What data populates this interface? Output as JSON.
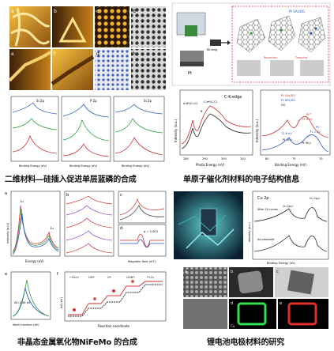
{
  "captions": {
    "q1": "二维材料—硅插入促进单层蓝磷的合成",
    "q2": "单原子催化剂材料的电子结构信息",
    "q3": "非晶态金属氧化物NiFeMo 的合成",
    "q4": "锂电池电极材料的研究"
  },
  "q1": {
    "panel_letters": [
      "a",
      "b",
      "c",
      "d",
      "e",
      "f",
      "g",
      "h"
    ],
    "xps_xlabel": "Binding Energy (eV)",
    "xps_titles": [
      "Si 2p",
      "P 2p",
      "Si 2p"
    ]
  },
  "q2": {
    "bottom_left": {
      "title": "C-K-edge",
      "xlabel": "Photo Energy (eV)",
      "ylabel": "Intensity (a.u.)",
      "peak_a": "A:π*(C=C)",
      "peak_b": "B",
      "peak_c": "C:σ*(C-C)",
      "ticks": [
        "280",
        "290",
        "300",
        "310"
      ]
    },
    "bottom_right": {
      "xlabel": "Binding Energy (eV)",
      "ylabel": "Intensity (a.u.)",
      "legend": [
        "Pt SAs/DG",
        "Pt NPs/DG",
        "DG"
      ],
      "labels": [
        "Pt²⁺",
        "73.6 eV",
        "Pt⁰",
        "71.2 eV",
        "Pt 4f₇/₂",
        "Pt 4f₅/₂",
        "72.6 eV"
      ],
      "ticks": [
        "80",
        "75",
        "70"
      ]
    },
    "schematic": {
      "label_pt": "Pt",
      "label_binding": "Binding",
      "label_reduction": "Reduction",
      "label_trapping": "Trapping",
      "label_sa": "Pt SAs/DG"
    }
  },
  "q3": {
    "panel_letters": [
      "a",
      "b",
      "c",
      "d",
      "e",
      "f"
    ],
    "a": {
      "xlabel": "Energy (eV)",
      "ylabel": "Intensity (a.u.)",
      "peaks": [
        "L₃",
        "L₂"
      ]
    },
    "e": {
      "xlabel": "Work function (eV)",
      "annotation": "W=2.44 eV"
    },
    "f": {
      "xlabel": "Reaction coordinate",
      "ylabel": "ΔG (eV)",
      "steps": [
        "*+H₂O",
        "OH*",
        "O*",
        "OOH*",
        "*+O₂"
      ]
    },
    "d": {
      "xlabel": "Magnetic field (mT)",
      "annotation": "g = 2.003"
    }
  },
  "q4": {
    "xps_title": "Cu 2p",
    "xps_xlabel": "Binding Energy (eV)",
    "xps_ylabel": "Intensity (a.u.)",
    "xps_labels": [
      "After 20 cycles",
      "As-prepared",
      "Cu 2p₁/₂",
      "Cu 2p₃/₂"
    ],
    "panel_letters": [
      "a",
      "b",
      "c",
      "d",
      "e"
    ],
    "map_label": "Cu"
  },
  "colors": {
    "stm_dark": "#3a2208",
    "stm_gold": "#e0a020",
    "accent_red": "#d03030",
    "accent_green": "#20a040",
    "accent_blue": "#2050c0"
  }
}
